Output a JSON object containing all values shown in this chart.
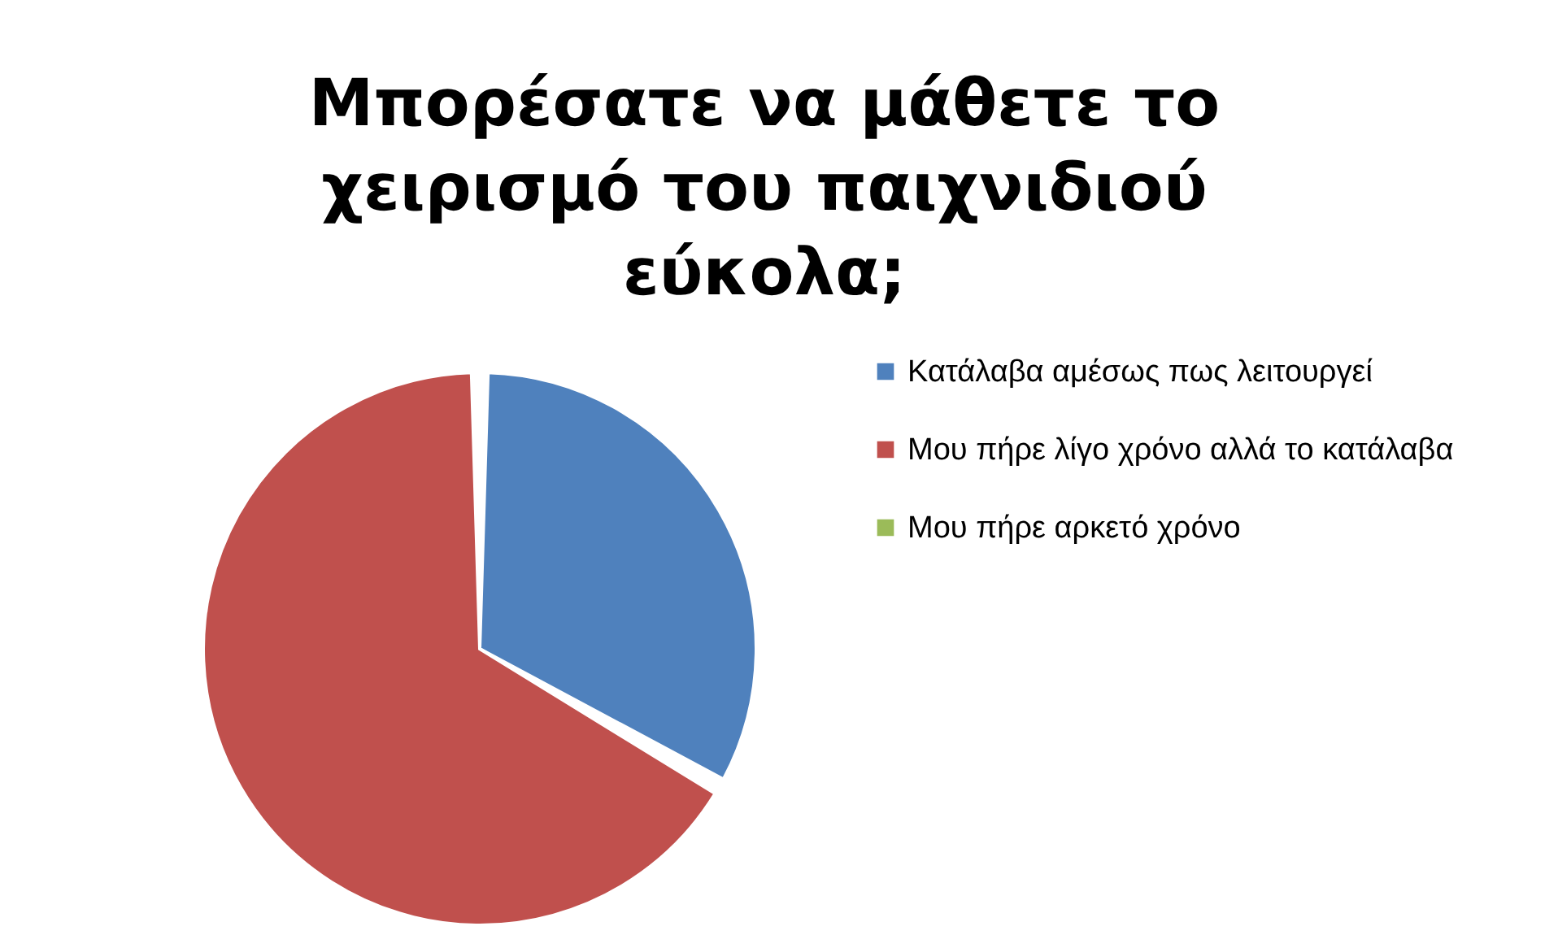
{
  "chart_data": {
    "type": "pie",
    "title": "Μπορέσατε να μάθετε το χειρισμό του παιχνιδιού εύκολα;",
    "categories": [
      "Κατάλαβα αμέσως πως λειτουργεί",
      "Μου πήρε λίγο χρόνο αλλά το κατάλαβα",
      "Μου πήρε αρκετό χρόνο"
    ],
    "values": [
      33.3,
      66.7,
      0
    ],
    "colors": [
      "#4f81bd",
      "#c0504d",
      "#9bbb59"
    ],
    "legend": "right"
  }
}
